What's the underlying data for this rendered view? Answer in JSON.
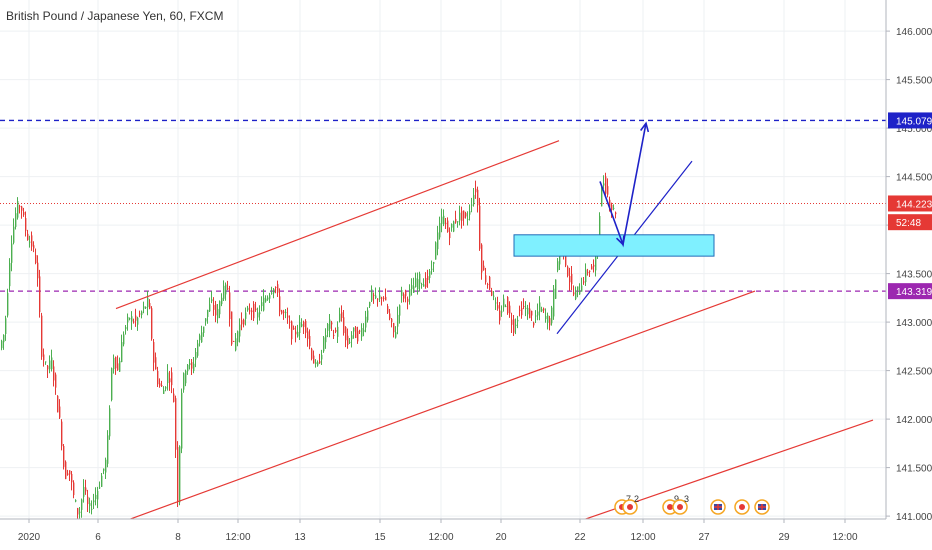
{
  "header": {
    "title": "British Pound / Japanese Yen, 60, FXCM"
  },
  "chart_data": {
    "type": "candlestick",
    "symbol": "British Pound / Japanese Yen",
    "interval": "60",
    "source": "FXCM",
    "ylim": [
      140.95,
      146.3
    ],
    "y_ticks": [
      "146.000",
      "145.500",
      "145.000",
      "144.500",
      "144.000",
      "143.500",
      "143.000",
      "142.500",
      "142.000",
      "141.500",
      "141.000"
    ],
    "x_ticks": [
      "2020",
      "6",
      "8",
      "12:00",
      "13",
      "15",
      "12:00",
      "20",
      "22",
      "12:00",
      "27",
      "29",
      "12:00"
    ],
    "price_tags": [
      {
        "label": "145.079",
        "value": 145.079,
        "color": "#1e22c8"
      },
      {
        "label": "144.223",
        "value": 144.223,
        "color": "#e53935"
      },
      {
        "label": "52:48",
        "value": 144.03,
        "color": "#e53935"
      },
      {
        "label": "143.319",
        "value": 143.319,
        "color": "#9c27b0"
      }
    ],
    "horizontal_lines": [
      {
        "value": 145.079,
        "color": "#1e22c8",
        "style": "dashed"
      },
      {
        "value": 143.319,
        "color": "#9c27b0",
        "style": "dashed"
      },
      {
        "value": 144.223,
        "color": "#e53935",
        "style": "dotted"
      }
    ],
    "trend_lines": [
      {
        "name": "channel-top",
        "color": "#e53935",
        "from": {
          "xi": 116,
          "price": 143.14
        },
        "to": {
          "xi": 559,
          "price": 144.87
        }
      },
      {
        "name": "channel-bottom",
        "color": "#e53935",
        "from": {
          "xi": 125,
          "price": 140.95
        },
        "to": {
          "xi": 755,
          "price": 143.32
        }
      },
      {
        "name": "lower-channel",
        "color": "#e53935",
        "from": {
          "xi": 580,
          "price": 140.95
        },
        "to": {
          "xi": 873,
          "price": 141.99
        }
      },
      {
        "name": "support-trend",
        "color": "#1e22c8",
        "from": {
          "xi": 557,
          "price": 142.88
        },
        "to": {
          "xi": 692,
          "price": 144.66
        }
      }
    ],
    "zone": {
      "price_top": 143.9,
      "price_bottom": 143.68,
      "xi_from": 514,
      "xi_to": 714,
      "fill": "#7ff0ff",
      "stroke": "#1e6bb8"
    },
    "projection": [
      {
        "xi": 600,
        "price": 144.45
      },
      {
        "xi": 623,
        "price": 143.8
      },
      {
        "xi": 646,
        "price": 145.05
      }
    ],
    "path": [
      [
        0,
        142.7
      ],
      [
        6,
        142.9
      ],
      [
        12,
        143.8
      ],
      [
        18,
        144.18
      ],
      [
        22,
        144.22
      ],
      [
        28,
        143.9
      ],
      [
        33,
        143.8
      ],
      [
        38,
        143.6
      ],
      [
        43,
        142.7
      ],
      [
        48,
        142.5
      ],
      [
        53,
        142.6
      ],
      [
        58,
        142.2
      ],
      [
        62,
        141.9
      ],
      [
        66,
        141.4
      ],
      [
        70,
        141.5
      ],
      [
        75,
        141.2
      ],
      [
        80,
        141.0
      ],
      [
        85,
        141.3
      ],
      [
        90,
        141.05
      ],
      [
        96,
        141.2
      ],
      [
        100,
        141.3
      ],
      [
        104,
        141.45
      ],
      [
        108,
        141.6
      ],
      [
        114,
        142.7
      ],
      [
        119,
        142.5
      ],
      [
        125,
        142.9
      ],
      [
        131,
        143.05
      ],
      [
        137,
        143.0
      ],
      [
        143,
        143.1
      ],
      [
        150,
        143.22
      ],
      [
        155,
        142.6
      ],
      [
        160,
        142.35
      ],
      [
        165,
        142.3
      ],
      [
        170,
        142.5
      ],
      [
        175,
        142.2
      ],
      [
        179,
        141.2
      ],
      [
        183,
        142.3
      ],
      [
        188,
        142.6
      ],
      [
        193,
        142.5
      ],
      [
        198,
        142.75
      ],
      [
        203,
        142.9
      ],
      [
        208,
        143.1
      ],
      [
        213,
        143.2
      ],
      [
        218,
        143.05
      ],
      [
        223,
        143.3
      ],
      [
        229,
        143.35
      ],
      [
        234,
        142.7
      ],
      [
        240,
        142.95
      ],
      [
        246,
        143.05
      ],
      [
        252,
        143.15
      ],
      [
        258,
        143.05
      ],
      [
        264,
        143.2
      ],
      [
        270,
        143.3
      ],
      [
        276,
        143.4
      ],
      [
        282,
        143.1
      ],
      [
        288,
        143.05
      ],
      [
        294,
        142.85
      ],
      [
        300,
        142.95
      ],
      [
        306,
        143.0
      ],
      [
        312,
        142.7
      ],
      [
        318,
        142.5
      ],
      [
        324,
        142.75
      ],
      [
        330,
        143.0
      ],
      [
        336,
        142.85
      ],
      [
        342,
        143.1
      ],
      [
        348,
        142.75
      ],
      [
        354,
        142.9
      ],
      [
        360,
        142.85
      ],
      [
        366,
        143.0
      ],
      [
        372,
        143.3
      ],
      [
        378,
        143.2
      ],
      [
        384,
        143.3
      ],
      [
        390,
        143.05
      ],
      [
        396,
        142.85
      ],
      [
        402,
        143.3
      ],
      [
        408,
        143.25
      ],
      [
        414,
        143.35
      ],
      [
        420,
        143.45
      ],
      [
        426,
        143.4
      ],
      [
        432,
        143.5
      ],
      [
        438,
        143.85
      ],
      [
        444,
        144.1
      ],
      [
        450,
        143.9
      ],
      [
        456,
        144.05
      ],
      [
        462,
        144.1
      ],
      [
        468,
        144.05
      ],
      [
        474,
        144.3
      ],
      [
        478,
        144.4
      ],
      [
        482,
        143.6
      ],
      [
        487,
        143.45
      ],
      [
        492,
        143.35
      ],
      [
        497,
        143.15
      ],
      [
        501,
        143.05
      ],
      [
        506,
        143.25
      ],
      [
        510,
        143.1
      ],
      [
        515,
        142.95
      ],
      [
        520,
        143.1
      ],
      [
        525,
        143.15
      ],
      [
        530,
        143.1
      ],
      [
        535,
        143.0
      ],
      [
        541,
        143.15
      ],
      [
        547,
        143.05
      ],
      [
        552,
        143.0
      ],
      [
        556,
        143.4
      ],
      [
        560,
        143.7
      ],
      [
        564,
        143.85
      ],
      [
        568,
        143.55
      ],
      [
        572,
        143.4
      ],
      [
        576,
        143.25
      ],
      [
        580,
        143.35
      ],
      [
        585,
        143.45
      ],
      [
        590,
        143.55
      ],
      [
        595,
        143.55
      ],
      [
        599,
        143.85
      ],
      [
        602,
        144.3
      ],
      [
        605,
        144.45
      ],
      [
        608,
        144.35
      ],
      [
        612,
        144.2
      ],
      [
        615,
        144.15
      ]
    ],
    "events": [
      {
        "label": "7",
        "type": "flag"
      },
      {
        "label": "2",
        "type": "flag"
      },
      {
        "label": "9",
        "type": "flag"
      },
      {
        "label": "3",
        "type": "flag"
      },
      {
        "label": "",
        "type": "flag-uk"
      },
      {
        "label": "",
        "type": "flag-jp"
      },
      {
        "label": "",
        "type": "flag-uk"
      }
    ]
  }
}
